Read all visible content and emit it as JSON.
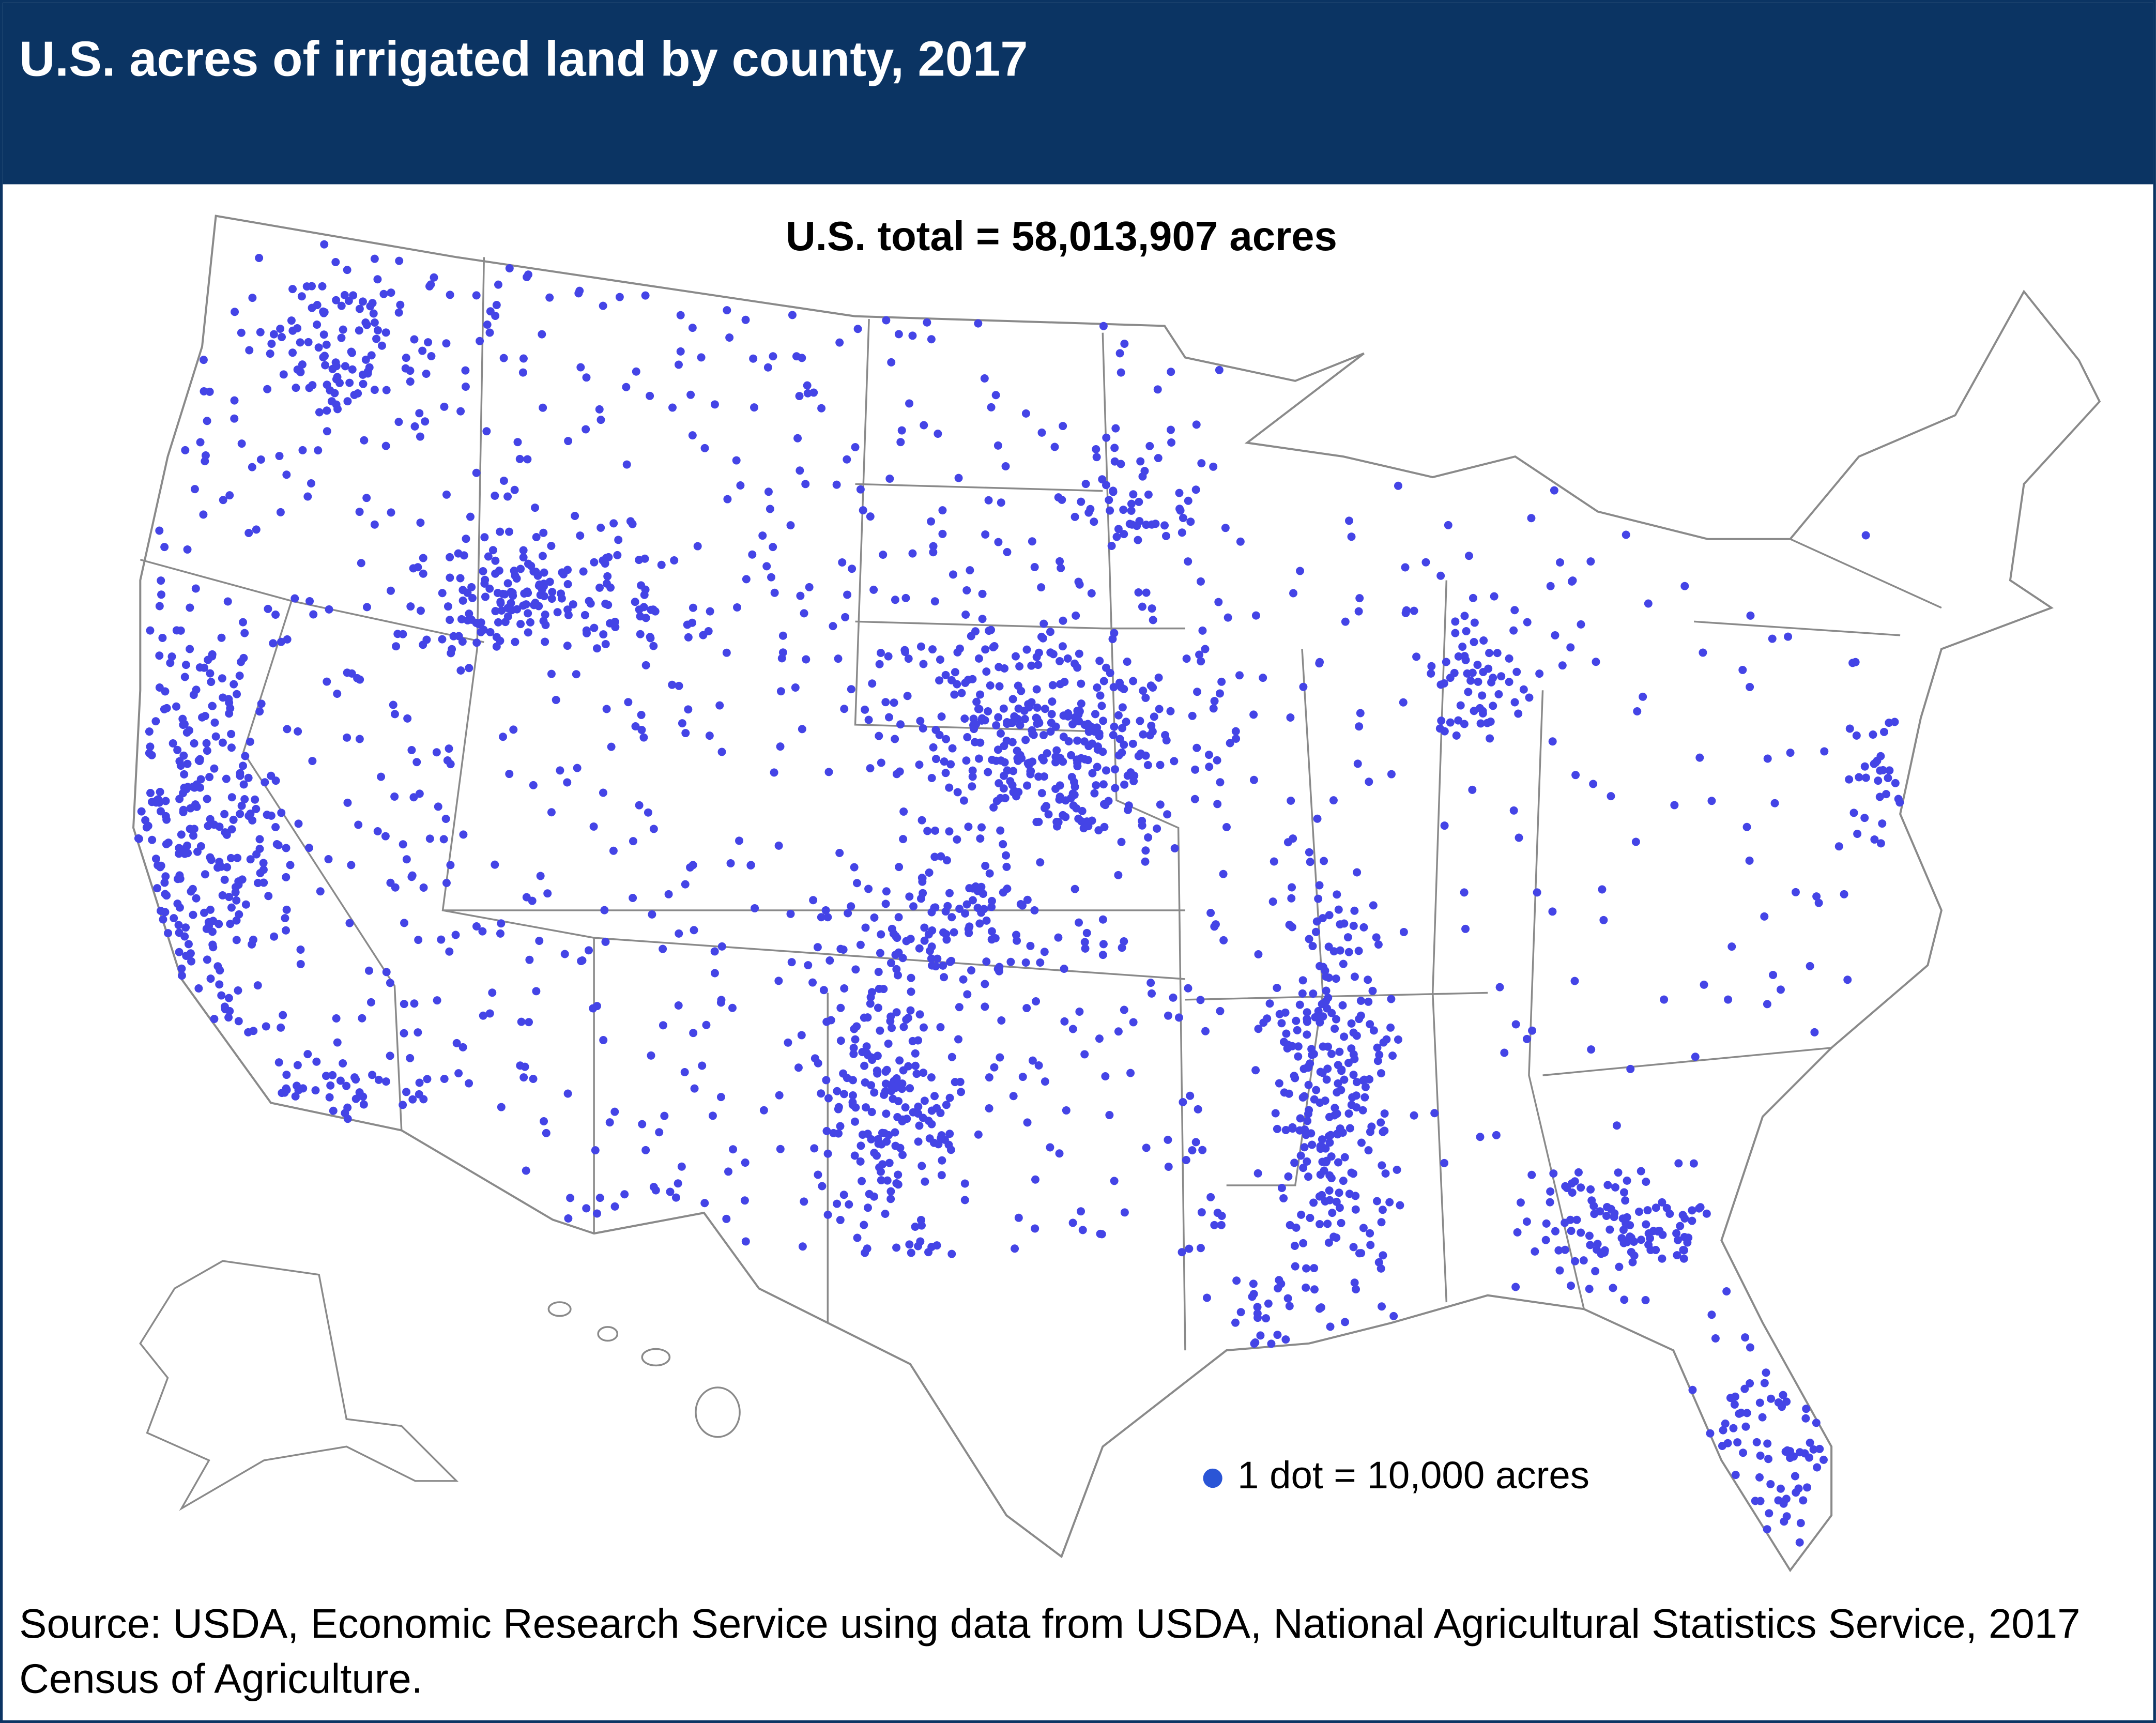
{
  "header": {
    "title": "U.S. acres of irrigated land by county, 2017"
  },
  "map": {
    "total": "U.S. total = 58,013,907 acres",
    "legend": "1 dot = 10,000 acres"
  },
  "footer": {
    "source": "Source: USDA, Economic Research Service using data from USDA, National Agricultural Statistics Service, 2017 Census of Agriculture."
  }
}
